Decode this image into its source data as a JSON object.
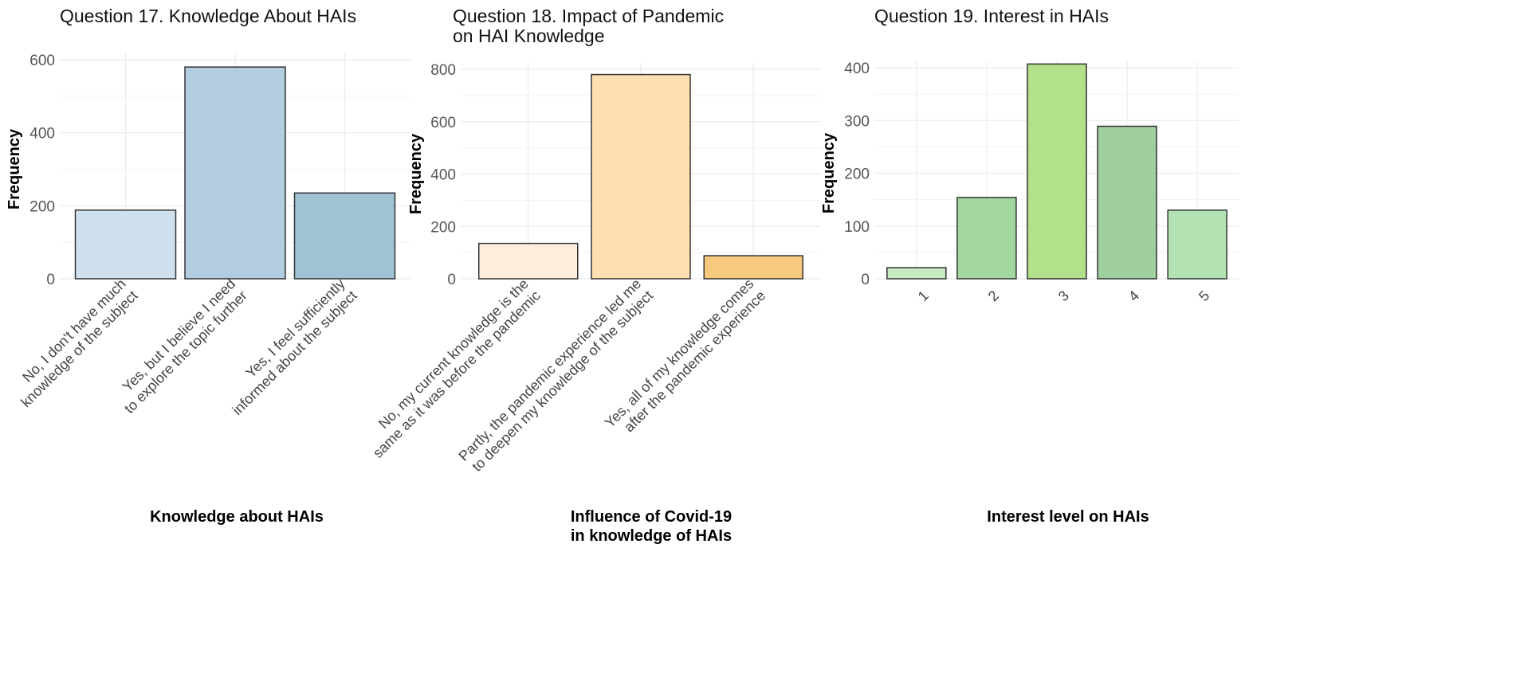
{
  "chart_data": [
    {
      "type": "bar",
      "title": [
        "Question 17. Knowledge About HAIs"
      ],
      "xlabel": [
        "Knowledge about HAIs"
      ],
      "ylabel": "Frequency",
      "ylim": [
        0,
        600
      ],
      "yticks": [
        0,
        200,
        400,
        600
      ],
      "categories": [
        [
          "No, I don't have much",
          "knowledge of the subject"
        ],
        [
          "Yes, but I believe I need",
          "to explore the topic further"
        ],
        [
          "Yes, I feel sufficiently",
          "informed about the subject"
        ]
      ],
      "values": [
        188,
        580,
        235
      ],
      "colors": [
        "#cfe1ef",
        "#b3cde0",
        "#a1c2d2"
      ],
      "grid": true
    },
    {
      "type": "bar",
      "title": [
        "Question 18. Impact of Pandemic",
        "on HAI Knowledge"
      ],
      "xlabel": [
        "Influence of Covid-19",
        "in knowledge of HAIs"
      ],
      "ylabel": "Frequency",
      "ylim": [
        0,
        800
      ],
      "yticks": [
        0,
        200,
        400,
        600,
        800
      ],
      "categories": [
        [
          "No, my current knowledge is the",
          "same as it was before the pandemic"
        ],
        [
          "Partly, the pandemic experience led me",
          "to deepen my knowledge of the subject"
        ],
        [
          "Yes, all of my knowledge comes",
          "after the pandemic experience"
        ]
      ],
      "values": [
        135,
        780,
        88
      ],
      "colors": [
        "#feeddd",
        "#fddfb0",
        "#f6c97f"
      ],
      "grid": true
    },
    {
      "type": "bar",
      "title": [
        "Question 19. Interest in HAIs"
      ],
      "xlabel": [
        "Interest level on HAIs"
      ],
      "ylabel": "Frequency",
      "ylim": [
        0,
        400
      ],
      "yticks": [
        0,
        100,
        200,
        300,
        400
      ],
      "categories": [
        [
          "1"
        ],
        [
          "2"
        ],
        [
          "3"
        ],
        [
          "4"
        ],
        [
          "5"
        ]
      ],
      "values": [
        21,
        154,
        407,
        289,
        130
      ],
      "colors": [
        "#c8eac2",
        "#a2d7a0",
        "#b3e08a",
        "#a0cf9f",
        "#b3e3b3"
      ],
      "grid": true
    }
  ]
}
